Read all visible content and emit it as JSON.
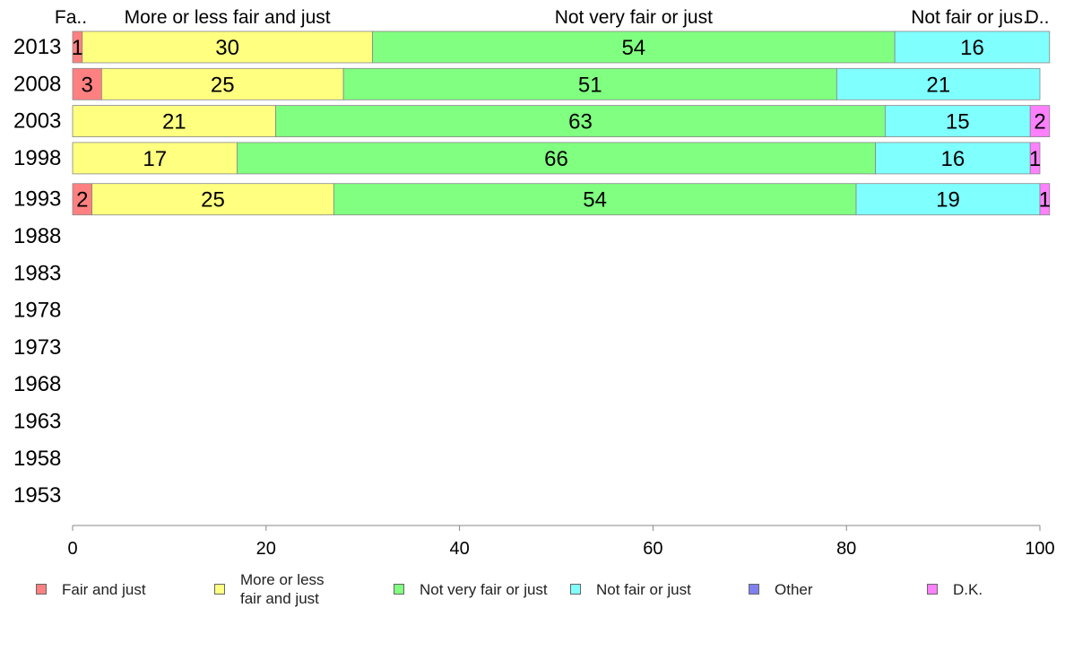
{
  "chart_data": {
    "type": "bar",
    "orientation": "horizontal",
    "stacked": true,
    "categories": [
      "2013",
      "2008",
      "2003",
      "1998",
      "1993",
      "1988",
      "1983",
      "1978",
      "1973",
      "1968",
      "1963",
      "1958",
      "1953"
    ],
    "series": [
      {
        "name": "Fair and just",
        "short": "Fa..",
        "color": "#ff8080",
        "values": [
          1,
          3,
          0,
          0,
          2,
          null,
          null,
          null,
          null,
          null,
          null,
          null,
          null
        ]
      },
      {
        "name": "More or less fair and just",
        "legend": "More or less\nfair and just",
        "short": "More or less fair and just",
        "color": "#ffff80",
        "values": [
          30,
          25,
          21,
          17,
          25,
          null,
          null,
          null,
          null,
          null,
          null,
          null,
          null
        ]
      },
      {
        "name": "Not very fair or just",
        "short": "Not very fair or just",
        "color": "#80ff80",
        "values": [
          54,
          51,
          63,
          66,
          54,
          null,
          null,
          null,
          null,
          null,
          null,
          null,
          null
        ]
      },
      {
        "name": "Not fair or just",
        "short": "Not fair or jus..",
        "color": "#80ffff",
        "values": [
          16,
          21,
          15,
          16,
          19,
          null,
          null,
          null,
          null,
          null,
          null,
          null,
          null
        ]
      },
      {
        "name": "Other",
        "short": "",
        "color": "#8080f0",
        "values": [
          0,
          0,
          0,
          0,
          0,
          null,
          null,
          null,
          null,
          null,
          null,
          null,
          null
        ]
      },
      {
        "name": "D.K.",
        "short": "D..",
        "color": "#ff80ff",
        "values": [
          0,
          0,
          2,
          1,
          1,
          null,
          null,
          null,
          null,
          null,
          null,
          null,
          null
        ]
      }
    ],
    "xlim": [
      0,
      100
    ],
    "xticks": [
      0,
      20,
      40,
      60,
      80,
      100
    ],
    "grid": false,
    "legend_position": "bottom"
  }
}
